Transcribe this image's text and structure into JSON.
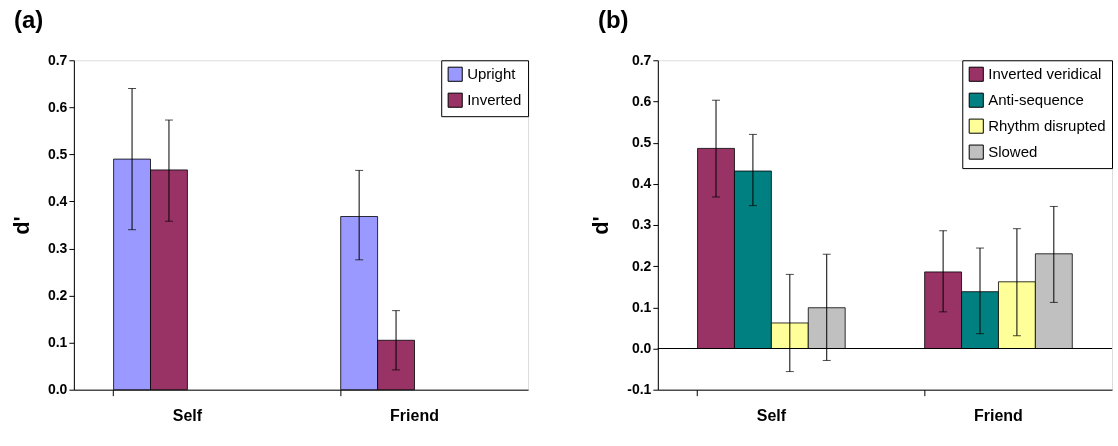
{
  "chart_data": [
    {
      "type": "bar",
      "title": "(a)",
      "ylabel": "d'",
      "categories": [
        "Self",
        "Friend"
      ],
      "series": [
        {
          "name": "Upright",
          "color": "#9999ff",
          "values": [
            0.49,
            0.368
          ],
          "errors": [
            [
              0.34,
              0.64
            ],
            [
              0.276,
              0.466
            ]
          ]
        },
        {
          "name": "Inverted",
          "color": "#993366",
          "values": [
            0.467,
            0.105
          ],
          "errors": [
            [
              0.358,
              0.573
            ],
            [
              0.042,
              0.168
            ]
          ]
        }
      ],
      "ylim": [
        0,
        0.7
      ],
      "yticks": [
        {
          "value": 0,
          "label": "0.0"
        },
        0.1,
        0.2,
        0.3,
        0.4,
        0.5,
        0.6,
        0.7
      ],
      "grid": false,
      "legend": "top right"
    },
    {
      "type": "bar",
      "title": "(b)",
      "ylabel": "d'",
      "categories": [
        "Self",
        "Friend"
      ],
      "series": [
        {
          "name": "Inverted veridical",
          "color": "#993366",
          "values": [
            0.486,
            0.186
          ],
          "errors": [
            [
              0.368,
              0.603
            ],
            [
              0.089,
              0.286
            ]
          ]
        },
        {
          "name": "Anti-sequence",
          "color": "#008080",
          "values": [
            0.431,
            0.138
          ],
          "errors": [
            [
              0.347,
              0.52
            ],
            [
              0.036,
              0.244
            ]
          ]
        },
        {
          "name": "Rhythm disrupted",
          "color": "#ffff99",
          "values": [
            0.062,
            0.162
          ],
          "errors": [
            [
              -0.056,
              0.18
            ],
            [
              0.031,
              0.291
            ]
          ]
        },
        {
          "name": "Slowed",
          "color": "#c0c0c0",
          "values": [
            0.099,
            0.23
          ],
          "errors": [
            [
              -0.029,
              0.229
            ],
            [
              0.112,
              0.345
            ]
          ]
        }
      ],
      "ref_lines": [
        {
          "axis": "y",
          "value": 0,
          "color": "#000000"
        }
      ],
      "ylim": [
        -0.1,
        0.7
      ],
      "yticks": [
        -0.1,
        {
          "value": 0,
          "label": "0.0"
        },
        0.1,
        0.2,
        0.3,
        0.4,
        0.5,
        0.6,
        0.7
      ],
      "grid": false,
      "legend": "top right"
    }
  ]
}
